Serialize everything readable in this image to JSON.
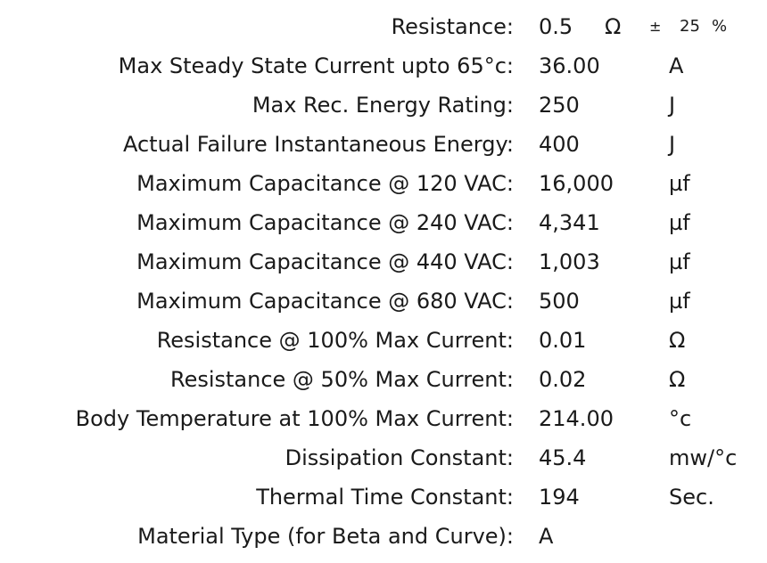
{
  "rows": [
    {
      "label": "Resistance:",
      "value": "0.5",
      "unit": "Ω",
      "pm": "±",
      "tolerance": "25",
      "tolerance_unit": "%"
    },
    {
      "label": "Max Steady State Current upto 65°c:",
      "value": "36.00",
      "unit": "A"
    },
    {
      "label": "Max Rec. Energy Rating:",
      "value": "250",
      "unit": "J"
    },
    {
      "label": "Actual Failure Instantaneous Energy:",
      "value": "400",
      "unit": "J"
    },
    {
      "label": "Maximum Capacitance @ 120 VAC:",
      "value": "16,000",
      "unit": "µf"
    },
    {
      "label": "Maximum Capacitance @ 240 VAC:",
      "value": "4,341",
      "unit": "µf"
    },
    {
      "label": "Maximum Capacitance @ 440 VAC:",
      "value": "1,003",
      "unit": "µf"
    },
    {
      "label": "Maximum Capacitance @ 680 VAC:",
      "value": "500",
      "unit": "µf"
    },
    {
      "label": "Resistance @ 100% Max Current:",
      "value": "0.01",
      "unit": "Ω"
    },
    {
      "label": "Resistance @ 50% Max Current:",
      "value": "0.02",
      "unit": "Ω"
    },
    {
      "label": "Body Temperature at 100% Max Current:",
      "value": "214.00",
      "unit": "°c"
    },
    {
      "label": "Dissipation Constant:",
      "value": "45.4",
      "unit": "mw/°c"
    },
    {
      "label": "Thermal Time Constant:",
      "value": "194",
      "unit": "Sec."
    },
    {
      "label": "Material Type (for Beta and Curve):",
      "value": "A",
      "unit": ""
    }
  ]
}
